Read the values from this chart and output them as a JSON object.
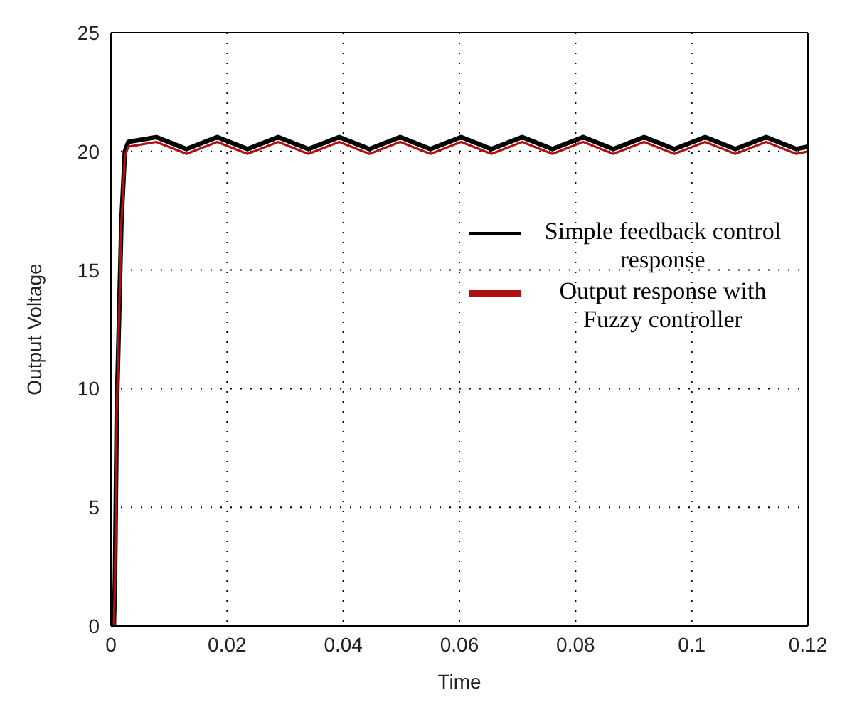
{
  "chart_data": {
    "type": "line",
    "xlabel": "Time",
    "ylabel": "Output Voltage",
    "xlim": [
      0,
      0.12
    ],
    "xticks": [
      0,
      0.02,
      0.04,
      0.06,
      0.08,
      0.1,
      0.12
    ],
    "ylim": [
      0,
      25
    ],
    "yticks": [
      0,
      5,
      10,
      15,
      20,
      25
    ],
    "grid": true,
    "legend": "right",
    "line_style": "solid",
    "marker": "none",
    "x": [
      0,
      0.0005,
      0.0007,
      0.001,
      0.0018,
      0.0024,
      0.003,
      0.0078,
      0.013,
      0.0183,
      0.0235,
      0.0288,
      0.034,
      0.0393,
      0.0445,
      0.0498,
      0.055,
      0.0603,
      0.0655,
      0.0708,
      0.076,
      0.0813,
      0.0865,
      0.0918,
      0.097,
      0.1023,
      0.1075,
      0.1128,
      0.118,
      0.12
    ],
    "series": [
      {
        "name": "Simple feedback control response",
        "color": "#000000",
        "values": [
          0,
          0,
          2,
          9,
          17,
          20,
          20.4,
          20.6,
          20.1,
          20.6,
          20.1,
          20.6,
          20.1,
          20.6,
          20.1,
          20.6,
          20.1,
          20.6,
          20.1,
          20.6,
          20.1,
          20.6,
          20.1,
          20.6,
          20.1,
          20.6,
          20.1,
          20.6,
          20.1,
          20.2
        ]
      },
      {
        "name": "Output response with Fuzzy controller",
        "color": "#b01010",
        "values": [
          0,
          0,
          2,
          9,
          17,
          19.8,
          20.2,
          20.4,
          19.9,
          20.4,
          19.9,
          20.4,
          19.9,
          20.4,
          19.9,
          20.4,
          19.9,
          20.4,
          19.9,
          20.4,
          19.9,
          20.4,
          19.9,
          20.4,
          19.9,
          20.4,
          19.9,
          20.4,
          19.9,
          20.0
        ]
      }
    ]
  }
}
